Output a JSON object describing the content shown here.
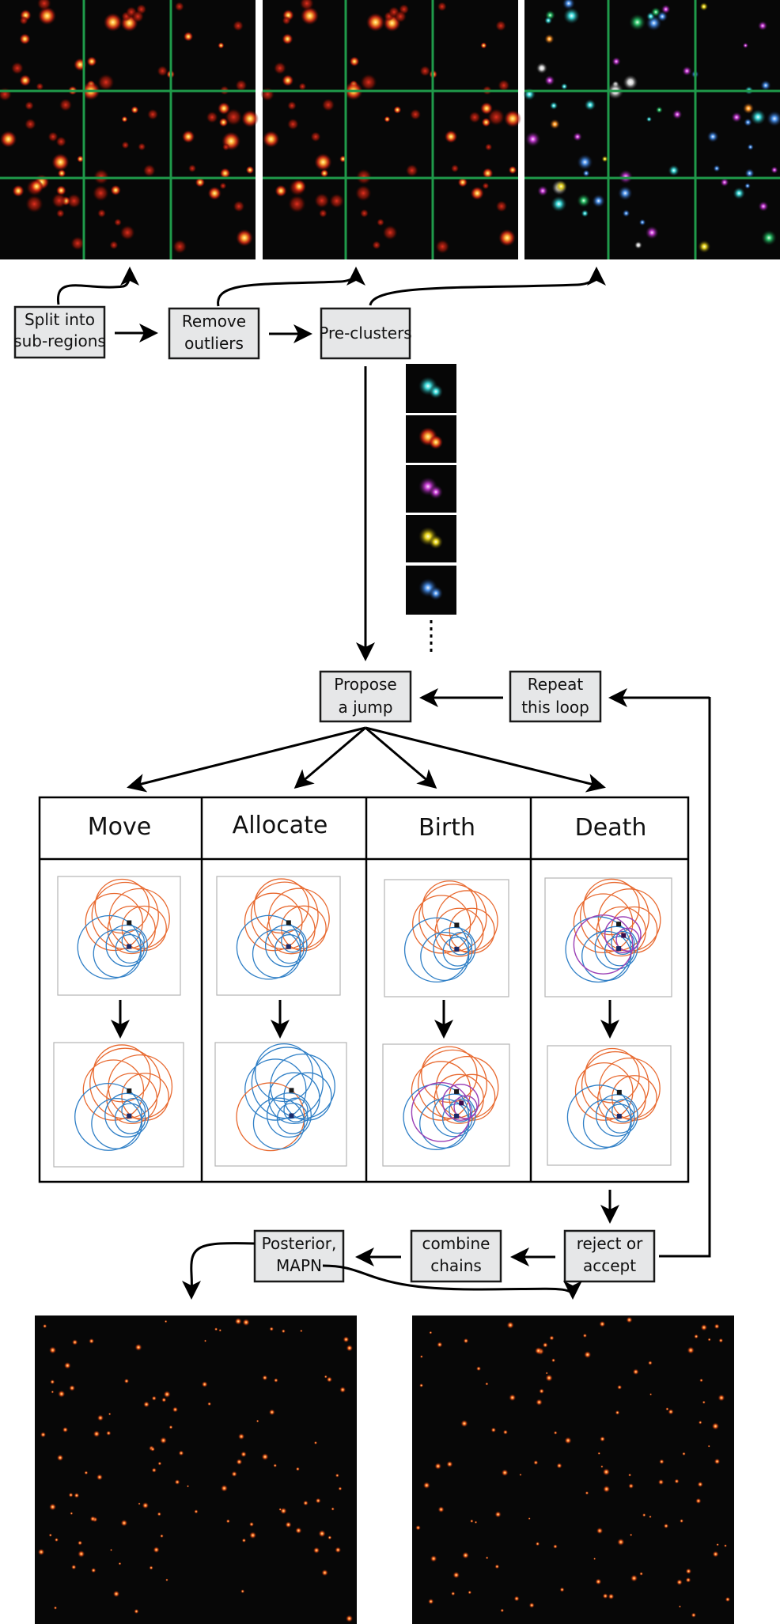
{
  "flow": {
    "split": [
      "Split into",
      "sub-regions"
    ],
    "remove": [
      "Remove",
      "outliers"
    ],
    "pre": [
      "Pre-clusters"
    ],
    "propose": [
      "Propose",
      "a jump"
    ],
    "repeat": [
      "Repeat",
      "this loop"
    ],
    "reject": [
      "reject or",
      "accept"
    ],
    "combine": [
      "combine",
      "chains"
    ],
    "posterior": [
      "Posterior,",
      "MAPN"
    ]
  },
  "moves": [
    "Move",
    "Allocate",
    "Birth",
    "Death"
  ],
  "colors": {
    "grid": "#1f9a4a",
    "box_fill": "#e6e7e8",
    "orange_circle": "#e8692f",
    "blue_circle": "#2f7fc6",
    "purple_circle": "#9b3fb5",
    "panel_bg": "#070707",
    "hot_red": "#e0301e",
    "hot_yellow": "#ffd040"
  },
  "icons": [
    "cluster-thumbnail",
    "gridded-localisation-image",
    "hot-colormap-image",
    "circle-ensemble-thumbnail"
  ]
}
